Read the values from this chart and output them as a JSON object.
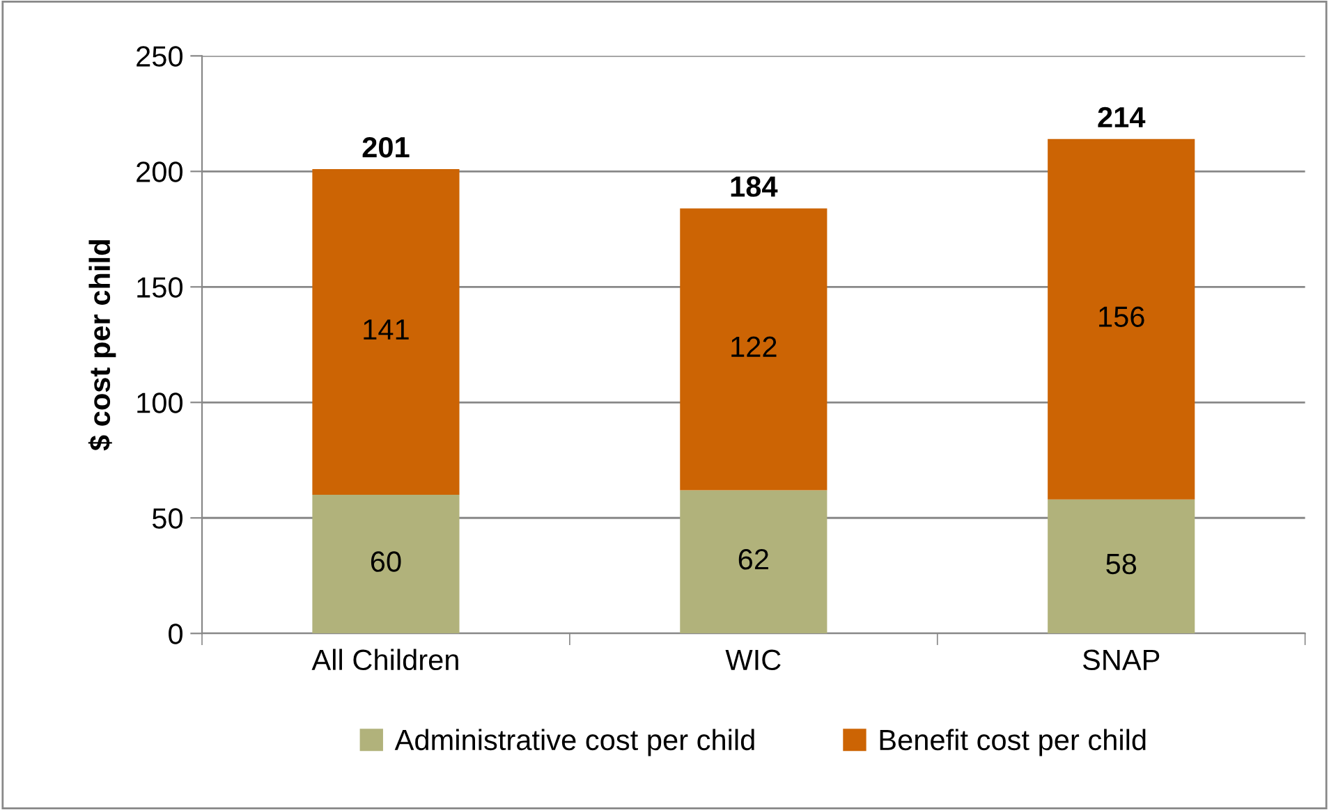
{
  "chart_data": {
    "type": "bar",
    "stacked": true,
    "ylabel": "$ cost per child",
    "categories": [
      "All Children",
      "WIC",
      "SNAP"
    ],
    "series": [
      {
        "name": "Administrative cost per child",
        "color": "#b1b27b",
        "values": [
          60,
          62,
          58
        ]
      },
      {
        "name": "Benefit cost per child",
        "color": "#cc6404",
        "values": [
          141,
          122,
          156
        ]
      }
    ],
    "totals": [
      "201",
      "184",
      "214"
    ],
    "data_labels": true,
    "ylim": [
      0,
      250
    ],
    "yticks": [
      0,
      50,
      100,
      150,
      200,
      250
    ],
    "grid": "y",
    "legend": "bottom"
  }
}
